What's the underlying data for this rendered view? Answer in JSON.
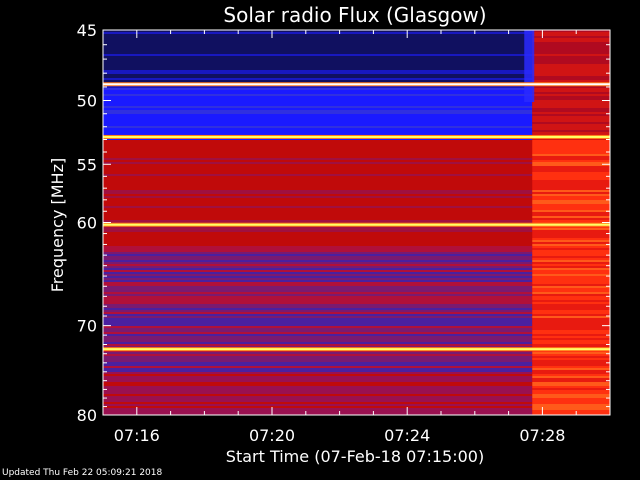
{
  "chart_data": {
    "type": "heatmap",
    "title": "Solar radio Flux (Glasgow)",
    "xlabel": "Start Time (07-Feb-18 07:15:00)",
    "ylabel": "Frequency [MHz]",
    "x_ticks": [
      "07:16",
      "07:20",
      "07:24",
      "07:28"
    ],
    "x_tick_minutes": [
      16,
      20,
      24,
      28
    ],
    "xlim_minutes": [
      15.0,
      30.0
    ],
    "y_ticks": [
      45,
      50,
      55,
      60,
      70,
      80
    ],
    "ylim": [
      45,
      80
    ],
    "y_scale": "log",
    "colors": {
      "low": "#1a1aff",
      "mid": "#c80a0a",
      "high": "#ffff66",
      "frame": "#ffffff",
      "background": "#000000"
    },
    "bright_bands_mhz": [
      48.8,
      52.8,
      60.2,
      72.5
    ],
    "burst_onset_minutes": 27.7
  },
  "footer": {
    "updated": "Updated Thu Feb 22 05:09:21 2018"
  }
}
